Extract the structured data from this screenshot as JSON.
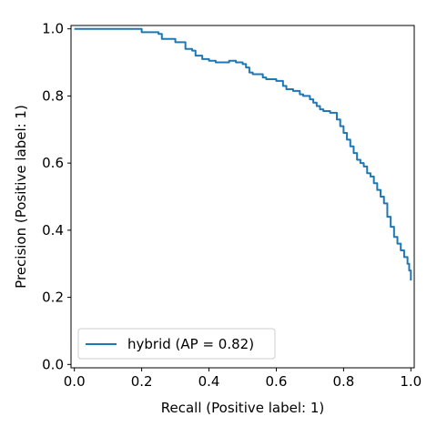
{
  "chart_data": {
    "type": "line",
    "title": "",
    "xlabel": "Recall (Positive label: 1)",
    "ylabel": "Precision (Positive label: 1)",
    "xlim": [
      -0.01,
      1.01
    ],
    "ylim": [
      -0.01,
      1.01
    ],
    "xticks": [
      0.0,
      0.2,
      0.4,
      0.6,
      0.8,
      1.0
    ],
    "xtick_labels": [
      "0.0",
      "0.2",
      "0.4",
      "0.6",
      "0.8",
      "1.0"
    ],
    "yticks": [
      0.0,
      0.2,
      0.4,
      0.6,
      0.8,
      1.0
    ],
    "ytick_labels": [
      "0.0",
      "0.2",
      "0.4",
      "0.6",
      "0.8",
      "1.0"
    ],
    "grid": false,
    "legend_position": "lower-left",
    "series": [
      {
        "name": "hybrid (AP = 0.82)",
        "color": "#1f77b4",
        "x": [
          0.0,
          0.2,
          0.2,
          0.23,
          0.25,
          0.26,
          0.27,
          0.3,
          0.33,
          0.35,
          0.36,
          0.38,
          0.4,
          0.42,
          0.44,
          0.46,
          0.48,
          0.5,
          0.51,
          0.52,
          0.53,
          0.55,
          0.56,
          0.57,
          0.6,
          0.62,
          0.63,
          0.65,
          0.67,
          0.68,
          0.7,
          0.71,
          0.72,
          0.73,
          0.74,
          0.76,
          0.78,
          0.79,
          0.8,
          0.81,
          0.82,
          0.83,
          0.84,
          0.85,
          0.86,
          0.87,
          0.88,
          0.89,
          0.9,
          0.91,
          0.92,
          0.93,
          0.94,
          0.95,
          0.96,
          0.97,
          0.98,
          0.99,
          0.995,
          1.0
        ],
        "y": [
          1.0,
          1.0,
          0.99,
          0.99,
          0.985,
          0.97,
          0.97,
          0.96,
          0.94,
          0.935,
          0.92,
          0.91,
          0.905,
          0.9,
          0.9,
          0.905,
          0.9,
          0.895,
          0.885,
          0.87,
          0.865,
          0.865,
          0.855,
          0.85,
          0.845,
          0.83,
          0.82,
          0.815,
          0.805,
          0.8,
          0.79,
          0.78,
          0.77,
          0.76,
          0.755,
          0.75,
          0.73,
          0.71,
          0.69,
          0.67,
          0.65,
          0.63,
          0.61,
          0.6,
          0.59,
          0.57,
          0.56,
          0.54,
          0.52,
          0.5,
          0.48,
          0.44,
          0.41,
          0.38,
          0.36,
          0.34,
          0.32,
          0.3,
          0.28,
          0.25
        ]
      }
    ]
  }
}
